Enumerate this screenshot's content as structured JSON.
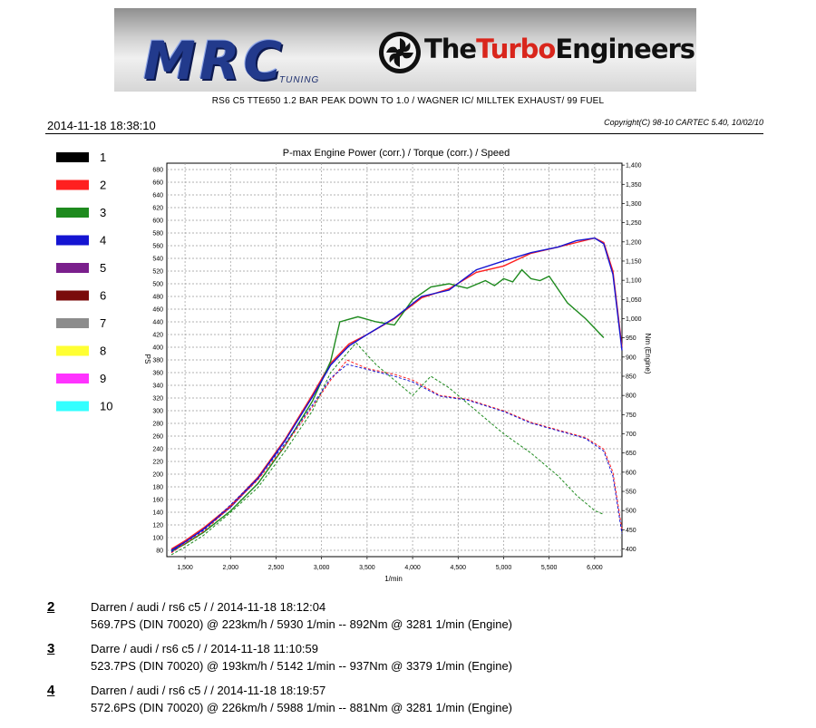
{
  "header": {
    "mrc_logo_text": "MRC",
    "mrc_logo_sub": "TUNING",
    "brand_part1": "The",
    "brand_part2": "Turbo",
    "brand_part3": "Engineers",
    "caption": "RS6 C5 TTE650  1.2 BAR PEAK DOWN TO 1.0 / WAGNER IC/ MILLTEK EXHAUST/ 99 FUEL",
    "timestamp": "2014-11-18  18:38:10",
    "copyright": "Copyright(C) 98-10 CARTEC 5.40, 10/02/10"
  },
  "legend": [
    {
      "label": "1",
      "color": "#000000"
    },
    {
      "label": "2",
      "color": "#ff2020"
    },
    {
      "label": "3",
      "color": "#1e8a1e"
    },
    {
      "label": "4",
      "color": "#1414d2"
    },
    {
      "label": "5",
      "color": "#7a1f8c"
    },
    {
      "label": "6",
      "color": "#7a0b0b"
    },
    {
      "label": "7",
      "color": "#8c8c8c"
    },
    {
      "label": "8",
      "color": "#ffff33"
    },
    {
      "label": "9",
      "color": "#ff33ff"
    },
    {
      "label": "10",
      "color": "#33ffff"
    }
  ],
  "chart_data": {
    "type": "line",
    "title": "P-max Engine Power (corr.) / Torque (corr.) / Speed",
    "xlabel": "1/min",
    "ylabel": "PS",
    "y2label": "Nm (Engine)",
    "xlim": [
      1300,
      6300
    ],
    "ylim": [
      70,
      690
    ],
    "y2lim": [
      380,
      1405
    ],
    "xticks": [
      "1,500",
      "2,000",
      "2,500",
      "3,000",
      "3,500",
      "4,000",
      "4,500",
      "5,000",
      "5,500",
      "6,000"
    ],
    "xtick_values": [
      1500,
      2000,
      2500,
      3000,
      3500,
      4000,
      4500,
      5000,
      5500,
      6000
    ],
    "yticks": [
      "80",
      "100",
      "120",
      "140",
      "160",
      "180",
      "200",
      "220",
      "240",
      "260",
      "280",
      "300",
      "320",
      "340",
      "360",
      "380",
      "400",
      "420",
      "440",
      "460",
      "480",
      "500",
      "520",
      "540",
      "560",
      "580",
      "600",
      "620",
      "640",
      "660",
      "680"
    ],
    "ytick_values": [
      80,
      100,
      120,
      140,
      160,
      180,
      200,
      220,
      240,
      260,
      280,
      300,
      320,
      340,
      360,
      380,
      400,
      420,
      440,
      460,
      480,
      500,
      520,
      540,
      560,
      580,
      600,
      620,
      640,
      660,
      680
    ],
    "y2ticks": [
      "400",
      "450",
      "500",
      "550",
      "600",
      "650",
      "700",
      "750",
      "800",
      "850",
      "900",
      "950",
      "1,000",
      "1,050",
      "1,100",
      "1,150",
      "1,200",
      "1,250",
      "1,300",
      "1,350",
      "1,400"
    ],
    "y2tick_values": [
      400,
      450,
      500,
      550,
      600,
      650,
      700,
      750,
      800,
      850,
      900,
      950,
      1000,
      1050,
      1100,
      1150,
      1200,
      1250,
      1300,
      1350,
      1400
    ],
    "grid": true,
    "legend_position": "left",
    "series": [
      {
        "legend": "2",
        "color": "#ff2020",
        "kind": "power",
        "x": [
          1350,
          1500,
          1700,
          2000,
          2300,
          2600,
          2900,
          3100,
          3300,
          3500,
          3800,
          4100,
          4400,
          4700,
          5000,
          5300,
          5600,
          5800,
          6000,
          6100,
          6200,
          6300
        ],
        "y": [
          82,
          95,
          115,
          150,
          195,
          255,
          325,
          375,
          405,
          420,
          445,
          478,
          492,
          518,
          528,
          548,
          558,
          565,
          572,
          565,
          520,
          400
        ]
      },
      {
        "legend": "3",
        "color": "#1e8a1e",
        "kind": "power",
        "x": [
          1350,
          1500,
          1700,
          2000,
          2300,
          2600,
          2900,
          3100,
          3200,
          3400,
          3600,
          3800,
          4000,
          4200,
          4400,
          4600,
          4800,
          4900,
          5000,
          5100,
          5200,
          5300,
          5400,
          5500,
          5700,
          5900,
          6000,
          6100
        ],
        "y": [
          78,
          90,
          108,
          142,
          185,
          245,
          315,
          378,
          440,
          448,
          440,
          435,
          475,
          495,
          500,
          493,
          505,
          497,
          508,
          503,
          522,
          508,
          505,
          512,
          470,
          445,
          430,
          415
        ]
      },
      {
        "legend": "4",
        "color": "#1414d2",
        "kind": "power",
        "x": [
          1350,
          1500,
          1700,
          2000,
          2300,
          2600,
          2900,
          3100,
          3300,
          3500,
          3800,
          4100,
          4400,
          4700,
          5000,
          5300,
          5600,
          5800,
          6000,
          6100,
          6200,
          6300
        ],
        "y": [
          80,
          93,
          113,
          148,
          193,
          253,
          322,
          372,
          402,
          420,
          446,
          480,
          490,
          522,
          536,
          549,
          558,
          568,
          572,
          563,
          515,
          395
        ]
      },
      {
        "legend": "2",
        "color": "#ff2020",
        "kind": "torque",
        "x": [
          1350,
          1500,
          1700,
          2000,
          2300,
          2600,
          2900,
          3100,
          3281,
          3500,
          3800,
          4000,
          4300,
          4600,
          5000,
          5300,
          5600,
          5900,
          6100,
          6200,
          6300
        ],
        "y": [
          390,
          415,
          445,
          510,
          580,
          670,
          770,
          840,
          892,
          870,
          855,
          840,
          800,
          790,
          760,
          730,
          710,
          690,
          660,
          600,
          450
        ]
      },
      {
        "legend": "3",
        "color": "#1e8a1e",
        "kind": "torque",
        "x": [
          1350,
          1500,
          1700,
          2000,
          2300,
          2600,
          2900,
          3100,
          3379,
          3600,
          3800,
          4000,
          4200,
          4400,
          4600,
          4800,
          5000,
          5300,
          5600,
          5800,
          6000,
          6100
        ],
        "y": [
          385,
          405,
          435,
          495,
          560,
          655,
          760,
          860,
          937,
          880,
          840,
          800,
          850,
          820,
          780,
          740,
          700,
          650,
          590,
          540,
          500,
          490
        ]
      },
      {
        "legend": "4",
        "color": "#1414d2",
        "kind": "torque",
        "x": [
          1350,
          1500,
          1700,
          2000,
          2300,
          2600,
          2900,
          3100,
          3281,
          3500,
          3800,
          4000,
          4300,
          4600,
          5000,
          5300,
          5600,
          5900,
          6100,
          6200,
          6300
        ],
        "y": [
          392,
          418,
          448,
          515,
          585,
          675,
          775,
          845,
          881,
          868,
          850,
          835,
          798,
          788,
          758,
          728,
          708,
          688,
          655,
          590,
          440
        ]
      }
    ]
  },
  "runs": [
    {
      "num": "2",
      "line1": "Darren / audi / rs6 c5 /  / 2014-11-18 18:12:04",
      "line2": "569.7PS (DIN 70020) @ 223km/h / 5930 1/min -- 892Nm @ 3281 1/min (Engine)"
    },
    {
      "num": "3",
      "line1": "Darre / audi / rs6 c5 /  / 2014-11-18 11:10:59",
      "line2": "523.7PS (DIN 70020) @ 193km/h / 5142 1/min -- 937Nm @ 3379 1/min (Engine)"
    },
    {
      "num": "4",
      "line1": "Darren / audi / rs6 c5 /  / 2014-11-18 18:19:57",
      "line2": "572.6PS (DIN 70020) @ 226km/h / 5988 1/min -- 881Nm @ 3281 1/min (Engine)"
    }
  ]
}
